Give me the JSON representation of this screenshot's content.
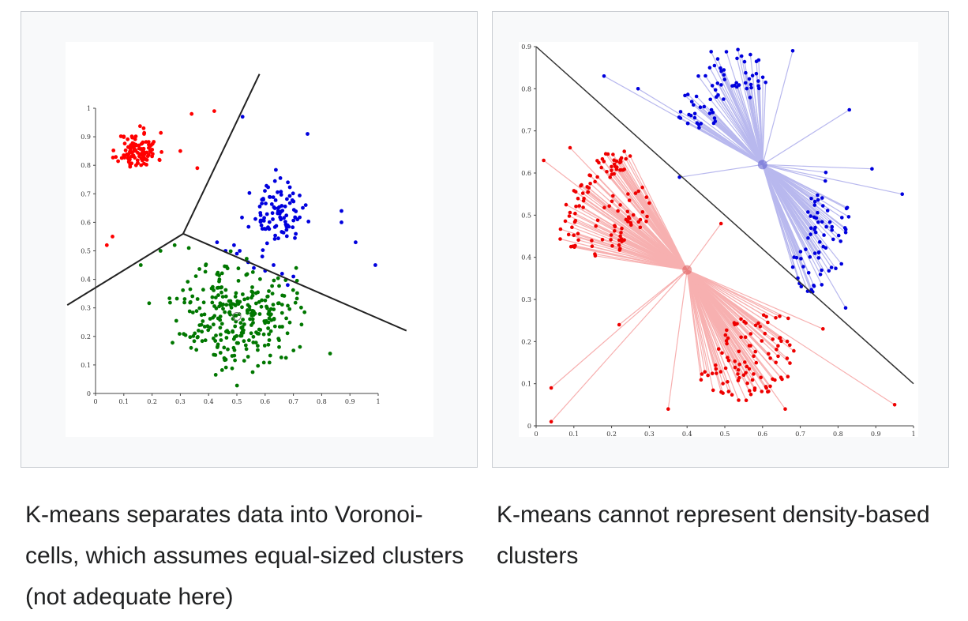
{
  "captions": {
    "left": "K-means separates data into Voronoi-cells, which assumes equal-sized clusters (not adequate here)",
    "right": "K-means cannot represent density-based clusters"
  },
  "chart_data": [
    {
      "type": "scatter",
      "title": "",
      "xlabel": "",
      "ylabel": "",
      "xlim": [
        0,
        1
      ],
      "ylim": [
        0,
        1
      ],
      "xticks": [
        "0",
        "0.1",
        "0.2",
        "0.3",
        "0.4",
        "0.5",
        "0.6",
        "0.7",
        "0.8",
        "0.9",
        "1"
      ],
      "yticks": [
        "0",
        "0.1",
        "0.2",
        "0.3",
        "0.4",
        "0.5",
        "0.6",
        "0.7",
        "0.8",
        "0.9",
        "1"
      ],
      "grid": false,
      "colors": {
        "red": "#ff0000",
        "blue": "#0000dd",
        "green": "#007700",
        "boundary": "#222222"
      },
      "series": [
        {
          "color": "red",
          "center": [
            0.15,
            0.85
          ],
          "spread": [
            0.035,
            0.032
          ],
          "count": 110,
          "seed": 11,
          "extra": [
            [
              0.34,
              0.98
            ],
            [
              0.42,
              0.99
            ],
            [
              0.3,
              0.85
            ],
            [
              0.36,
              0.79
            ],
            [
              0.04,
              0.52
            ],
            [
              0.06,
              0.55
            ],
            [
              0.17,
              0.93
            ]
          ]
        },
        {
          "color": "blue",
          "center": [
            0.64,
            0.63
          ],
          "spread": [
            0.045,
            0.05
          ],
          "count": 95,
          "seed": 23,
          "extra": [
            [
              0.52,
              0.97
            ],
            [
              0.75,
              0.91
            ],
            [
              0.87,
              0.64
            ],
            [
              0.87,
              0.6
            ],
            [
              0.92,
              0.53
            ],
            [
              0.99,
              0.45
            ],
            [
              0.68,
              0.38
            ],
            [
              0.43,
              0.53
            ],
            [
              0.46,
              0.5
            ],
            [
              0.5,
              0.49
            ],
            [
              0.49,
              0.52
            ],
            [
              0.51,
              0.5
            ],
            [
              0.54,
              0.46
            ],
            [
              0.56,
              0.44
            ],
            [
              0.59,
              0.48
            ],
            [
              0.6,
              0.43
            ],
            [
              0.63,
              0.45
            ],
            [
              0.66,
              0.42
            ],
            [
              0.7,
              0.41
            ]
          ]
        },
        {
          "color": "green",
          "center": [
            0.5,
            0.28
          ],
          "spread": [
            0.1,
            0.09
          ],
          "count": 290,
          "seed": 37,
          "extra": [
            [
              0.16,
              0.45
            ],
            [
              0.23,
              0.5
            ],
            [
              0.28,
              0.52
            ],
            [
              0.33,
              0.51
            ],
            [
              0.83,
              0.14
            ]
          ]
        }
      ],
      "centroids": [
        [
          0.5,
          0.27
        ]
      ],
      "boundaries": [
        [
          [
            0.31,
            0.56
          ],
          [
            0.58,
            1.12
          ]
        ],
        [
          [
            0.31,
            0.56
          ],
          [
            -0.1,
            0.31
          ]
        ],
        [
          [
            0.31,
            0.56
          ],
          [
            1.1,
            0.22
          ]
        ]
      ]
    },
    {
      "type": "scatter",
      "title": "",
      "xlabel": "",
      "ylabel": "",
      "xlim": [
        0,
        1
      ],
      "ylim": [
        0,
        0.9
      ],
      "xticks": [
        "0",
        "0.1",
        "0.2",
        "0.3",
        "0.4",
        "0.5",
        "0.6",
        "0.7",
        "0.8",
        "0.9",
        "1"
      ],
      "yticks": [
        "0",
        "0.1",
        "0.2",
        "0.3",
        "0.4",
        "0.5",
        "0.6",
        "0.7",
        "0.8",
        "0.9"
      ],
      "grid": false,
      "colors": {
        "red": "#ee0000",
        "blue": "#0000dd",
        "red_line": "#f7b0b0",
        "blue_line": "#b8b8ee",
        "boundary": "#333333"
      },
      "series": [
        {
          "color": "red",
          "centroid": [
            0.4,
            0.37
          ],
          "arcs": [
            {
              "center": [
                0.25,
                0.45
              ],
              "count": 70,
              "r": [
                0.15,
                0.21
              ],
              "ang": [
                90,
                190
              ],
              "seed": 5
            },
            {
              "center": [
                0.27,
                0.43
              ],
              "count": 50,
              "r": [
                0.04,
                0.14
              ],
              "ang": [
                60,
                200
              ],
              "seed": 6
            },
            {
              "center": [
                0.55,
                0.25
              ],
              "count": 60,
              "r": [
                0.1,
                0.19
              ],
              "ang": [
                220,
                340
              ],
              "seed": 7
            },
            {
              "center": [
                0.57,
                0.27
              ],
              "count": 40,
              "r": [
                0.03,
                0.13
              ],
              "ang": [
                200,
                360
              ],
              "seed": 8
            }
          ],
          "extra": [
            [
              0.02,
              0.63
            ],
            [
              0.09,
              0.66
            ],
            [
              0.04,
              0.09
            ],
            [
              0.04,
              0.01
            ],
            [
              0.22,
              0.24
            ],
            [
              0.35,
              0.04
            ],
            [
              0.49,
              0.48
            ],
            [
              0.76,
              0.23
            ],
            [
              0.95,
              0.05
            ],
            [
              0.66,
              0.04
            ],
            [
              0.61,
              0.09
            ]
          ]
        },
        {
          "color": "blue",
          "centroid": [
            0.6,
            0.62
          ],
          "arcs": [
            {
              "center": [
                0.53,
                0.74
              ],
              "count": 70,
              "r": [
                0.05,
                0.17
              ],
              "ang": [
                40,
                200
              ],
              "seed": 15
            },
            {
              "center": [
                0.68,
                0.47
              ],
              "count": 70,
              "r": [
                0.05,
                0.17
              ],
              "ang": [
                -90,
                60
              ],
              "seed": 16
            }
          ],
          "extra": [
            [
              0.18,
              0.83
            ],
            [
              0.27,
              0.8
            ],
            [
              0.68,
              0.89
            ],
            [
              0.83,
              0.75
            ],
            [
              0.89,
              0.61
            ],
            [
              0.97,
              0.55
            ],
            [
              0.82,
              0.28
            ],
            [
              0.38,
              0.59
            ],
            [
              0.43,
              0.83
            ],
            [
              0.46,
              0.85
            ]
          ]
        }
      ],
      "centroids": [
        [
          0.4,
          0.37
        ],
        [
          0.6,
          0.62
        ]
      ],
      "boundaries": [
        [
          [
            0,
            0.9
          ],
          [
            1,
            0.1
          ]
        ]
      ]
    }
  ]
}
